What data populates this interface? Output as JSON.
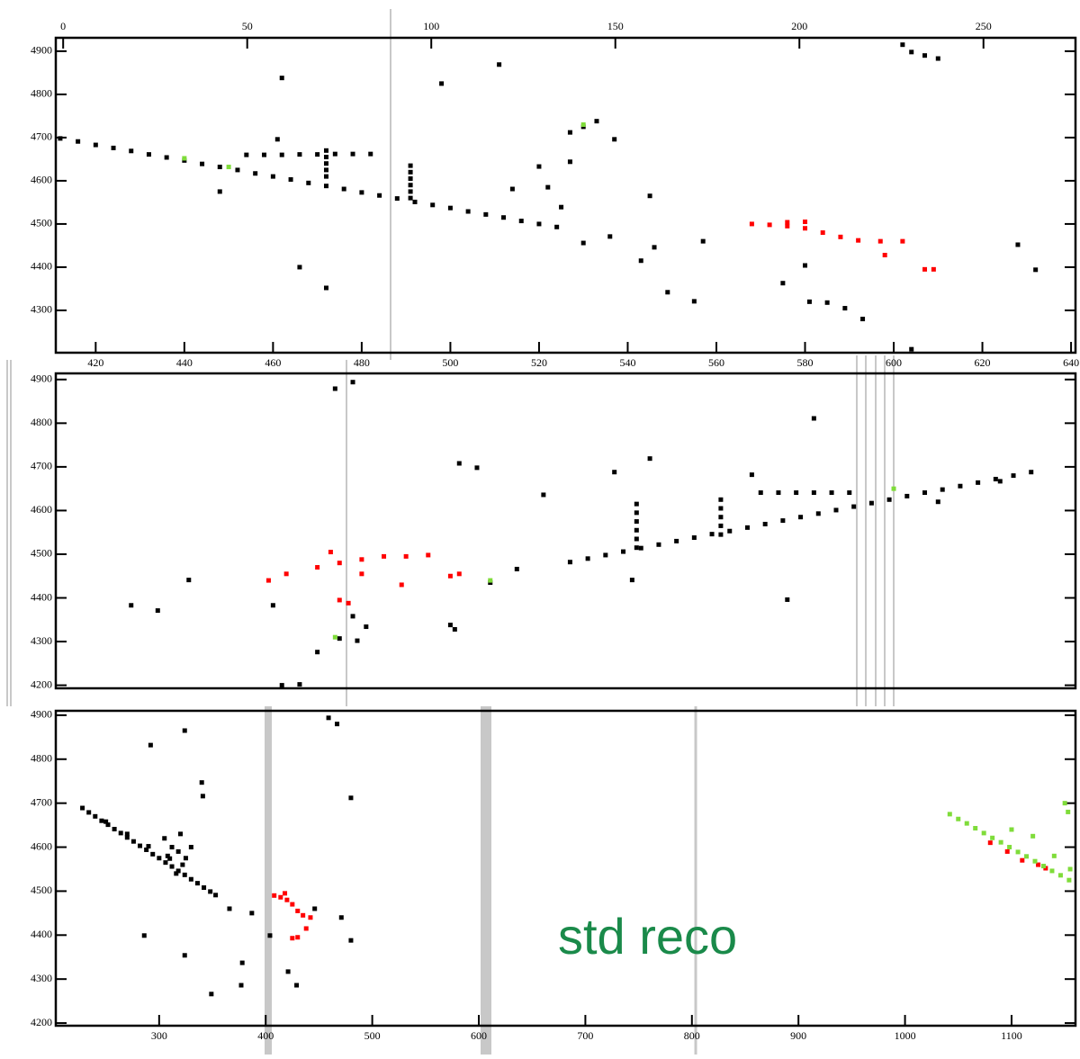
{
  "chart_data": [
    {
      "type": "scatter",
      "xlim": [
        411,
        641
      ],
      "xticks": [
        420,
        440,
        460,
        480,
        500,
        520,
        540,
        560,
        580,
        600,
        620,
        640
      ],
      "x2lim": [
        -2,
        275
      ],
      "x2ticks": [
        0,
        50,
        100,
        150,
        200,
        250
      ],
      "ylim": [
        4202,
        4931
      ],
      "yticks": [
        4300,
        4400,
        4500,
        4600,
        4700,
        4800,
        4900
      ],
      "series": [
        {
          "color": "#000000",
          "x": [
            412,
            416,
            420,
            424,
            428,
            432,
            436,
            440,
            444,
            448,
            452,
            456,
            460,
            464,
            468,
            472,
            476,
            480,
            484,
            488,
            492,
            496,
            500,
            504,
            508,
            512,
            516,
            520,
            524,
            454,
            458,
            462,
            466,
            470,
            474,
            478,
            482,
            472,
            472,
            472,
            472,
            472,
            491,
            491,
            491,
            491,
            491,
            491,
            527,
            530,
            533,
            581,
            585,
            589,
            593,
            632,
            602,
            604,
            607,
            610,
            604,
            462,
            498,
            511,
            461,
            537,
            448,
            466,
            472,
            530,
            536,
            543,
            546,
            557,
            549,
            555,
            575,
            580,
            628,
            520,
            527,
            545,
            514,
            525,
            522
          ],
          "y": [
            4698,
            4691,
            4683,
            4676,
            4669,
            4661,
            4654,
            4647,
            4639,
            4632,
            4625,
            4617,
            4610,
            4603,
            4595,
            4588,
            4581,
            4573,
            4566,
            4559,
            4551,
            4544,
            4537,
            4529,
            4522,
            4515,
            4507,
            4500,
            4493,
            4660,
            4660,
            4660,
            4661,
            4661,
            4662,
            4662,
            4662,
            4610,
            4625,
            4640,
            4655,
            4670,
            4560,
            4575,
            4590,
            4605,
            4620,
            4635,
            4712,
            4725,
            4738,
            4320,
            4318,
            4305,
            4280,
            4394,
            4915,
            4898,
            4890,
            4883,
            4210,
            4838,
            4825,
            4869,
            4696,
            4696,
            4575,
            4400,
            4352,
            4456,
            4471,
            4415,
            4446,
            4460,
            4342,
            4321,
            4363,
            4404,
            4452,
            4633,
            4644,
            4565,
            4581,
            4539,
            4585
          ]
        },
        {
          "color": "#ff0000",
          "x": [
            568,
            572,
            576,
            580,
            584,
            588,
            592,
            580,
            576,
            597,
            602,
            598,
            609,
            607
          ],
          "y": [
            4500,
            4498,
            4495,
            4490,
            4480,
            4470,
            4462,
            4505,
            4504,
            4460,
            4460,
            4428,
            4395,
            4395
          ]
        },
        {
          "color": "#7fdc3a",
          "x": [
            440,
            450,
            530
          ],
          "y": [
            4652,
            4632,
            4730
          ]
        }
      ]
    },
    {
      "type": "scatter",
      "xlim": [
        411,
        641
      ],
      "ylim": [
        4193,
        4914
      ],
      "yticks": [
        4200,
        4300,
        4400,
        4500,
        4600,
        4700,
        4800,
        4900
      ],
      "series": [
        {
          "color": "#000000",
          "x": [
            527,
            531,
            535,
            539,
            543,
            547,
            551,
            555,
            559,
            563,
            567,
            571,
            575,
            579,
            583,
            587,
            591,
            595,
            599,
            603,
            607,
            611,
            615,
            619,
            623,
            627,
            631,
            542,
            542,
            542,
            542,
            542,
            542,
            561,
            561,
            561,
            561,
            561,
            570,
            574,
            578,
            582,
            586,
            590,
            474,
            478,
            441,
            428,
            434,
            460,
            478,
            481,
            470,
            475,
            479,
            500,
            502,
            506,
            521,
            537,
            545,
            568,
            582,
            576,
            541,
            515,
            509,
            501,
            610,
            624,
            462,
            466
          ],
          "y": [
            4482,
            4490,
            4498,
            4506,
            4514,
            4522,
            4530,
            4538,
            4546,
            4553,
            4561,
            4569,
            4577,
            4585,
            4593,
            4601,
            4609,
            4617,
            4625,
            4633,
            4641,
            4648,
            4656,
            4664,
            4672,
            4680,
            4688,
            4515,
            4535,
            4555,
            4575,
            4595,
            4615,
            4545,
            4565,
            4585,
            4605,
            4625,
            4641,
            4641,
            4641,
            4641,
            4641,
            4641,
            4879,
            4894,
            4441,
            4383,
            4371,
            4383,
            4358,
            4334,
            4276,
            4307,
            4302,
            4338,
            4708,
            4698,
            4636,
            4688,
            4719,
            4682,
            4811,
            4396,
            4441,
            4466,
            4435,
            4328,
            4620,
            4667,
            4200,
            4202
          ]
        },
        {
          "color": "#ff0000",
          "x": [
            470,
            475,
            480,
            485,
            490,
            495,
            473,
            480,
            459,
            463,
            475,
            477,
            489,
            502,
            500
          ],
          "y": [
            4470,
            4480,
            4488,
            4495,
            4495,
            4498,
            4505,
            4455,
            4440,
            4455,
            4395,
            4388,
            4430,
            4455,
            4450
          ]
        },
        {
          "color": "#7fdc3a",
          "x": [
            474,
            509,
            600
          ],
          "y": [
            4310,
            4440,
            4650
          ]
        }
      ]
    },
    {
      "type": "scatter",
      "annotation": "std reco",
      "xlim": [
        203,
        1160
      ],
      "xticks": [
        300,
        400,
        500,
        600,
        700,
        800,
        900,
        1000,
        1100
      ],
      "ylim": [
        4194,
        4910
      ],
      "yticks": [
        4200,
        4300,
        4400,
        4500,
        4600,
        4700,
        4800,
        4900
      ],
      "series": [
        {
          "color": "#000000",
          "x": [
            228,
            234,
            240,
            246,
            252,
            258,
            264,
            270,
            276,
            282,
            288,
            294,
            300,
            306,
            312,
            318,
            324,
            330,
            336,
            342,
            348,
            353,
            250,
            270,
            290,
            310,
            312,
            318,
            322,
            316,
            308,
            325,
            330,
            305,
            320,
            292,
            324,
            340,
            341,
            286,
            324,
            349,
            378,
            377,
            366,
            387,
            459,
            467,
            480,
            446,
            471,
            480,
            421,
            429,
            404
          ],
          "y": [
            4689,
            4679,
            4670,
            4660,
            4651,
            4641,
            4632,
            4622,
            4613,
            4603,
            4594,
            4584,
            4575,
            4565,
            4556,
            4546,
            4537,
            4527,
            4518,
            4508,
            4499,
            4491,
            4658,
            4630,
            4602,
            4574,
            4600,
            4590,
            4560,
            4540,
            4580,
            4575,
            4600,
            4620,
            4630,
            4832,
            4865,
            4747,
            4716,
            4399,
            4354,
            4266,
            4337,
            4286,
            4460,
            4450,
            4894,
            4880,
            4712,
            4460,
            4440,
            4388,
            4317,
            4286,
            4399
          ]
        },
        {
          "color": "#ff0000",
          "x": [
            408,
            414,
            420,
            425,
            430,
            435,
            442,
            438,
            430,
            425,
            418,
            1080,
            1096,
            1110,
            1125,
            1132
          ],
          "y": [
            4490,
            4486,
            4480,
            4470,
            4455,
            4445,
            4440,
            4415,
            4395,
            4393,
            4495,
            4610,
            4590,
            4570,
            4560,
            4552
          ]
        },
        {
          "color": "#7fdc3a",
          "x": [
            1042,
            1050,
            1058,
            1066,
            1074,
            1082,
            1090,
            1098,
            1106,
            1114,
            1122,
            1130,
            1138,
            1146,
            1154,
            1100,
            1120,
            1150,
            1153,
            1155,
            1140
          ],
          "y": [
            4675,
            4664,
            4654,
            4643,
            4632,
            4621,
            4611,
            4600,
            4589,
            4579,
            4568,
            4557,
            4546,
            4536,
            4525,
            4640,
            4625,
            4700,
            4680,
            4550,
            4580
          ]
        }
      ]
    }
  ]
}
